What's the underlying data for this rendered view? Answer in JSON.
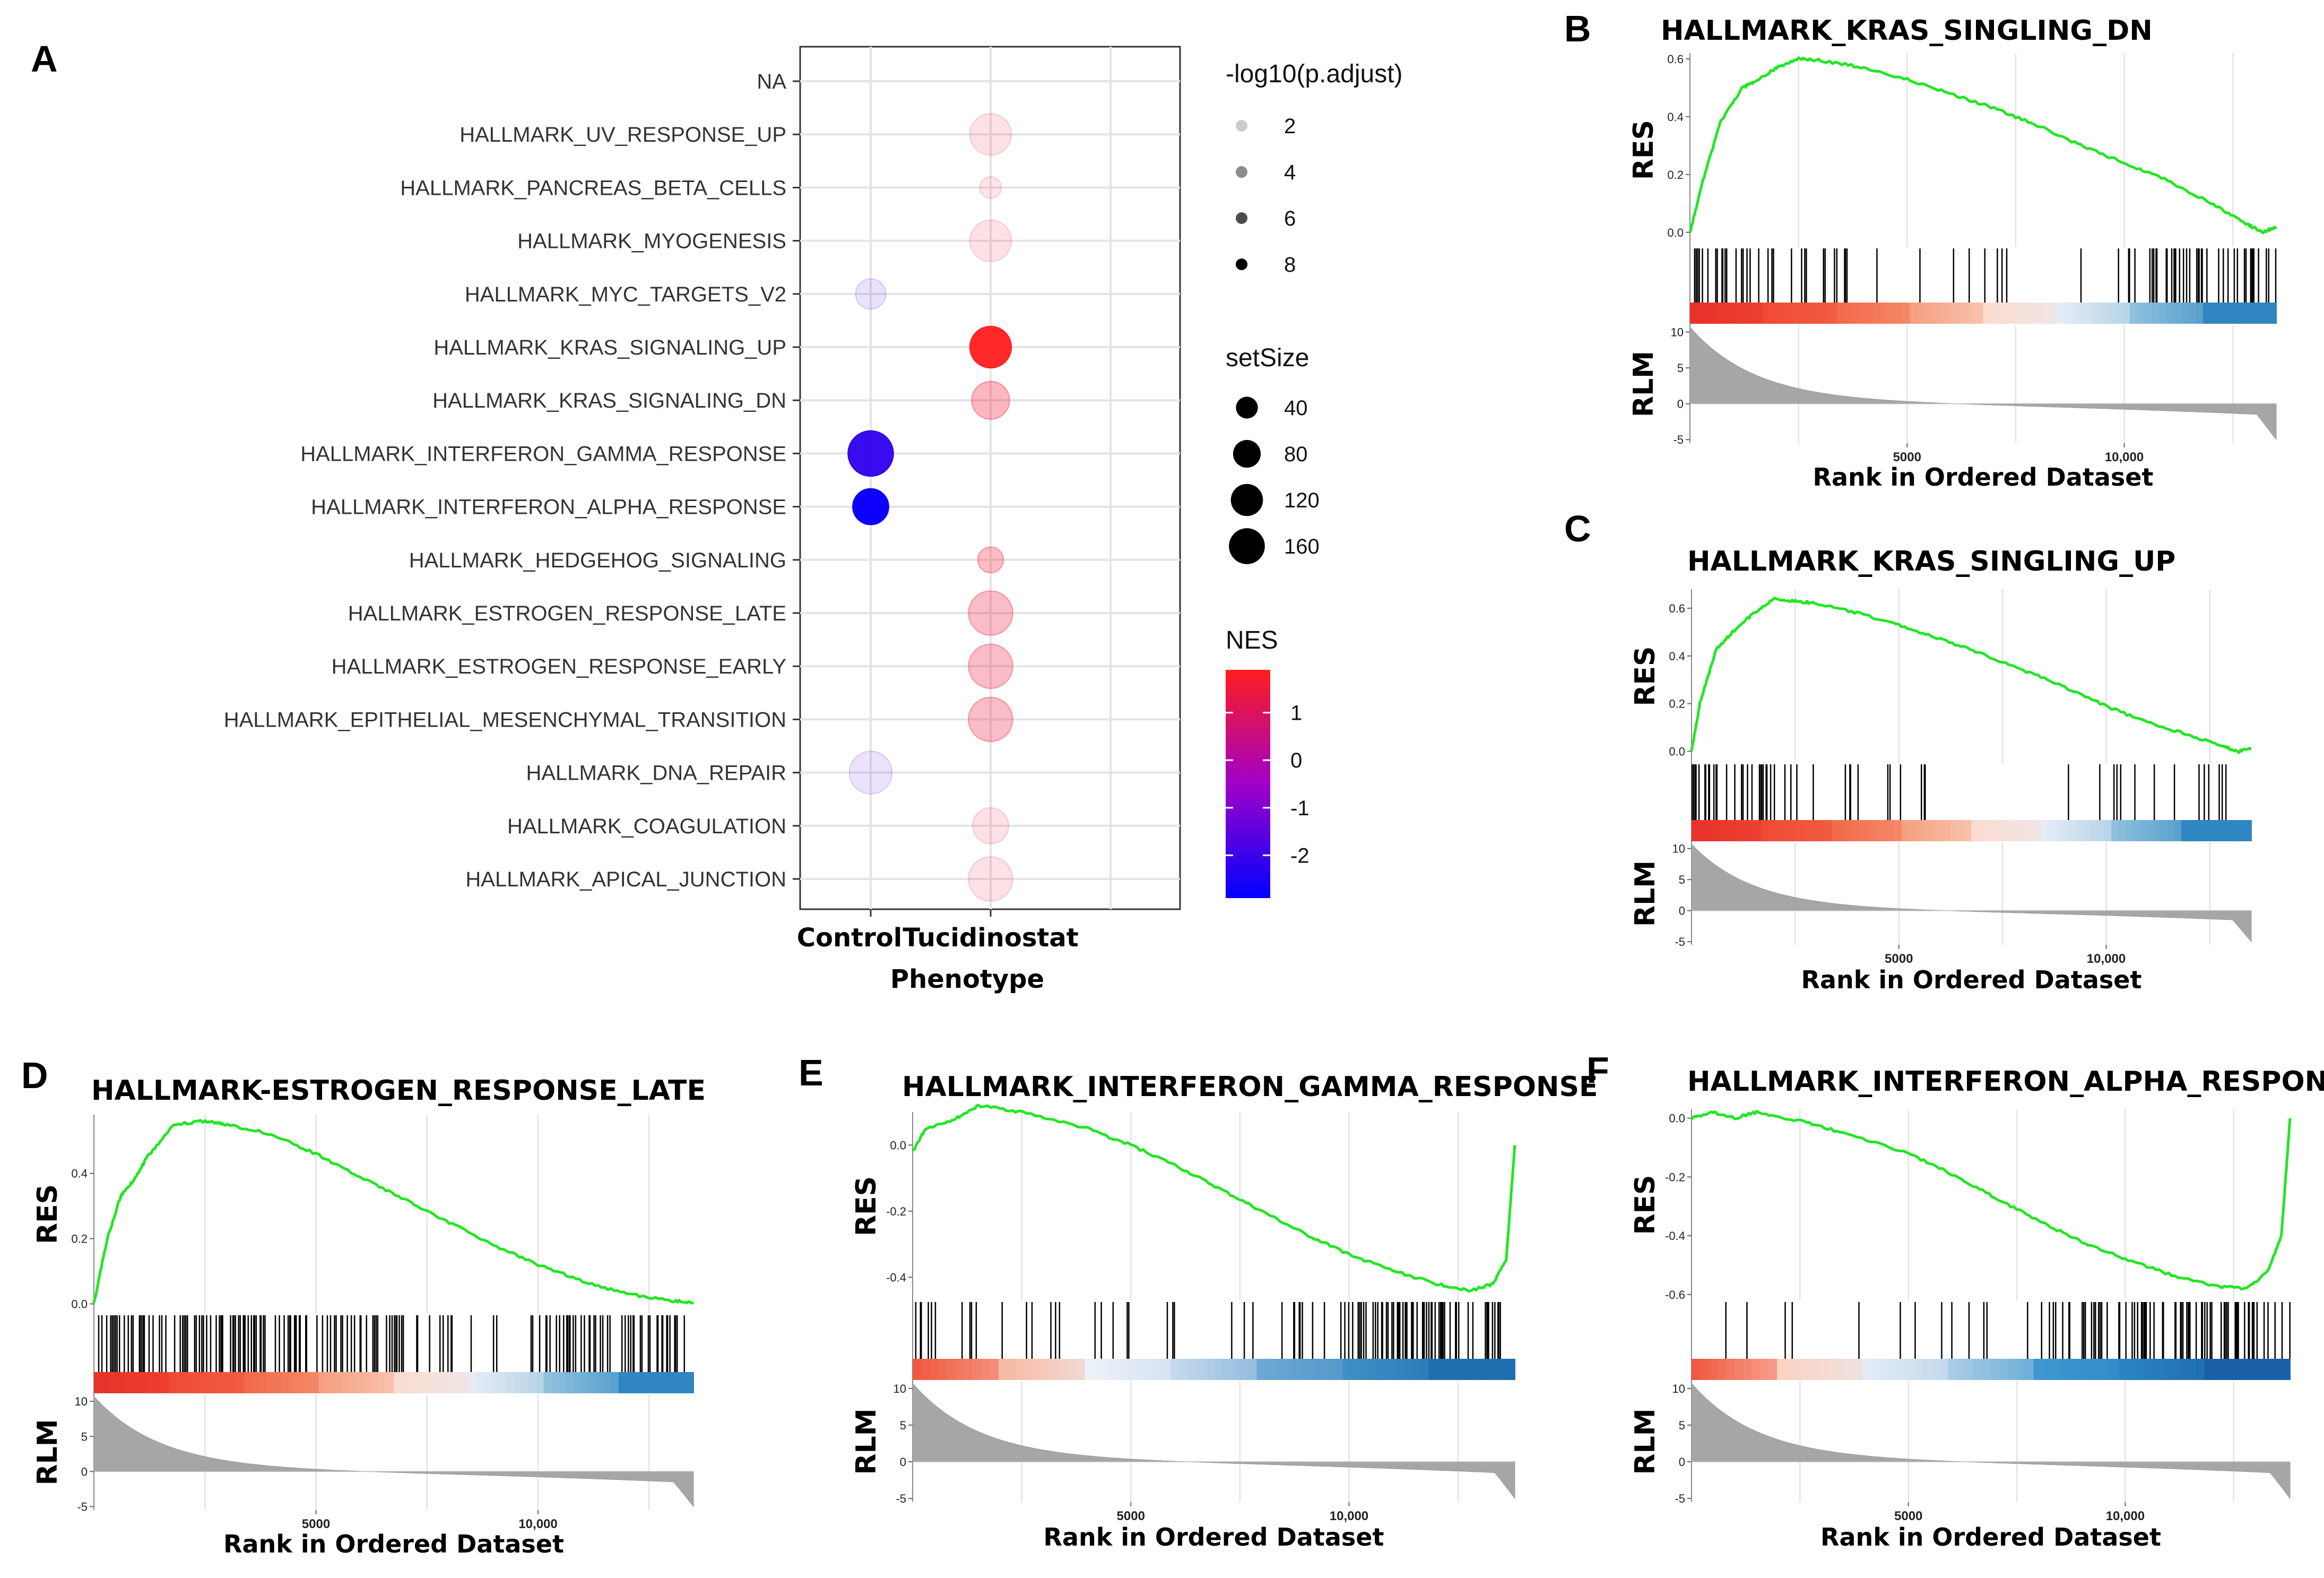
{
  "chart_data": [
    {
      "panel": "A",
      "type": "scatter",
      "xlabel": "Phenotype",
      "x_categories": [
        "Control",
        "Tucidinostat"
      ],
      "y_categories": [
        "NA",
        "HALLMARK_UV_RESPONSE_UP",
        "HALLMARK_PANCREAS_BETA_CELLS",
        "HALLMARK_MYOGENESIS",
        "HALLMARK_MYC_TARGETS_V2",
        "HALLMARK_KRAS_SIGNALING_UP",
        "HALLMARK_KRAS_SIGNALING_DN",
        "HALLMARK_INTERFERON_GAMMA_RESPONSE",
        "HALLMARK_INTERFERON_ALPHA_RESPONSE",
        "HALLMARK_HEDGEHOG_SIGNALING",
        "HALLMARK_ESTROGEN_RESPONSE_LATE",
        "HALLMARK_ESTROGEN_RESPONSE_EARLY",
        "HALLMARK_EPITHELIAL_MESENCHYMAL_TRANSITION",
        "HALLMARK_DNA_REPAIR",
        "HALLMARK_COAGULATION",
        "HALLMARK_APICAL_JUNCTION"
      ],
      "points": [
        {
          "term": "HALLMARK_UV_RESPONSE_UP",
          "phenotype": "Tucidinostat",
          "setSize": 140,
          "nlp": 1.6,
          "nes": 1.4
        },
        {
          "term": "HALLMARK_PANCREAS_BETA_CELLS",
          "phenotype": "Tucidinostat",
          "setSize": 20,
          "nlp": 1.5,
          "nes": 1.5
        },
        {
          "term": "HALLMARK_MYOGENESIS",
          "phenotype": "Tucidinostat",
          "setSize": 140,
          "nlp": 1.6,
          "nes": 1.4
        },
        {
          "term": "HALLMARK_MYC_TARGETS_V2",
          "phenotype": "Control",
          "setSize": 58,
          "nlp": 1.5,
          "nes": -1.8
        },
        {
          "term": "HALLMARK_KRAS_SIGNALING_UP",
          "phenotype": "Tucidinostat",
          "setSize": 140,
          "nlp": 8.5,
          "nes": 1.9
        },
        {
          "term": "HALLMARK_KRAS_SIGNALING_DN",
          "phenotype": "Tucidinostat",
          "setSize": 110,
          "nlp": 3.2,
          "nes": 1.6
        },
        {
          "term": "HALLMARK_INTERFERON_GAMMA_RESPONSE",
          "phenotype": "Control",
          "setSize": 175,
          "nlp": 8.5,
          "nes": -2.2
        },
        {
          "term": "HALLMARK_INTERFERON_ALPHA_RESPONSE",
          "phenotype": "Control",
          "setSize": 95,
          "nlp": 9.0,
          "nes": -2.7
        },
        {
          "term": "HALLMARK_HEDGEHOG_SIGNALING",
          "phenotype": "Tucidinostat",
          "setSize": 36,
          "nlp": 3.0,
          "nes": 1.6
        },
        {
          "term": "HALLMARK_ESTROGEN_RESPONSE_LATE",
          "phenotype": "Tucidinostat",
          "setSize": 165,
          "nlp": 3.0,
          "nes": 1.5
        },
        {
          "term": "HALLMARK_ESTROGEN_RESPONSE_EARLY",
          "phenotype": "Tucidinostat",
          "setSize": 165,
          "nlp": 3.0,
          "nes": 1.5
        },
        {
          "term": "HALLMARK_EPITHELIAL_MESENCHYMAL_TRANSITION",
          "phenotype": "Tucidinostat",
          "setSize": 165,
          "nlp": 3.0,
          "nes": 1.5
        },
        {
          "term": "HALLMARK_DNA_REPAIR",
          "phenotype": "Control",
          "setSize": 150,
          "nlp": 1.5,
          "nes": -1.6
        },
        {
          "term": "HALLMARK_COAGULATION",
          "phenotype": "Tucidinostat",
          "setSize": 95,
          "nlp": 1.6,
          "nes": 1.4
        },
        {
          "term": "HALLMARK_APICAL_JUNCTION",
          "phenotype": "Tucidinostat",
          "setSize": 165,
          "nlp": 1.6,
          "nes": 1.4
        }
      ],
      "legend_alpha": {
        "title": "-log10(p.adjust)",
        "values": [
          "2",
          "4",
          "6",
          "8"
        ]
      },
      "legend_size": {
        "title": "setSize",
        "values": [
          "40",
          "80",
          "120",
          "160"
        ]
      },
      "legend_color": {
        "title": "NES",
        "ticks": [
          "1",
          "0",
          "-1",
          "-2"
        ],
        "range": [
          -2.9,
          1.9
        ],
        "low_color": "#0000ff",
        "mid_color": "#a000c8",
        "high_color": "#ff1e1e"
      }
    },
    {
      "panel": "B",
      "type": "line",
      "title": "HALLMARK_KRAS_SINGLING_DN",
      "ylabel_top": "RES",
      "ylabel_bottom": "RLM",
      "xlabel": "Rank in Ordered Dataset",
      "x_ticks": [
        "5000",
        "10,000"
      ],
      "y_ticks_top": [
        "0.6",
        "0.4",
        "0.2",
        "0.0"
      ],
      "y_ticks_bottom": [
        "10",
        "5",
        "0",
        "-5"
      ],
      "xlim": [
        0,
        13500
      ],
      "ylim_top": [
        -0.05,
        0.62
      ],
      "curve": [
        [
          0,
          0
        ],
        [
          300,
          0.18
        ],
        [
          700,
          0.38
        ],
        [
          1200,
          0.5
        ],
        [
          1500,
          0.52
        ],
        [
          2000,
          0.57
        ],
        [
          2500,
          0.6
        ],
        [
          3000,
          0.595
        ],
        [
          4000,
          0.57
        ],
        [
          5000,
          0.53
        ],
        [
          6000,
          0.48
        ],
        [
          7000,
          0.43
        ],
        [
          8000,
          0.37
        ],
        [
          9000,
          0.3
        ],
        [
          10000,
          0.24
        ],
        [
          11000,
          0.18
        ],
        [
          12000,
          0.1
        ],
        [
          12800,
          0.03
        ],
        [
          13200,
          0.0
        ],
        [
          13500,
          0.02
        ]
      ],
      "heat_colors": [
        "#e8322b",
        "#f04a35",
        "#f26a4a",
        "#f5a07f",
        "#fbdcd0",
        "#e6ecf6",
        "#8fc1de",
        "#2f86c0"
      ],
      "hits_density": [
        [
          0,
          1600,
          "dense"
        ],
        [
          1600,
          4000,
          "medium"
        ],
        [
          4000,
          10500,
          "sparse"
        ],
        [
          10500,
          13500,
          "dense"
        ]
      ]
    },
    {
      "panel": "C",
      "type": "line",
      "title": "HALLMARK_KRAS_SINGLING_UP",
      "ylabel_top": "RES",
      "ylabel_bottom": "RLM",
      "xlabel": "Rank in Ordered Dataset",
      "x_ticks": [
        "5000",
        "10,000"
      ],
      "y_ticks_top": [
        "0.6",
        "0.4",
        "0.2",
        "0.0"
      ],
      "y_ticks_bottom": [
        "10",
        "5",
        "0",
        "-5"
      ],
      "xlim": [
        0,
        13500
      ],
      "ylim_top": [
        -0.05,
        0.68
      ],
      "curve": [
        [
          0,
          0
        ],
        [
          200,
          0.2
        ],
        [
          600,
          0.43
        ],
        [
          1000,
          0.5
        ],
        [
          1500,
          0.58
        ],
        [
          2000,
          0.64
        ],
        [
          2500,
          0.63
        ],
        [
          3000,
          0.62
        ],
        [
          4000,
          0.58
        ],
        [
          5000,
          0.53
        ],
        [
          6000,
          0.47
        ],
        [
          7000,
          0.41
        ],
        [
          8000,
          0.34
        ],
        [
          9000,
          0.27
        ],
        [
          10000,
          0.19
        ],
        [
          11000,
          0.12
        ],
        [
          12000,
          0.07
        ],
        [
          12800,
          0.02
        ],
        [
          13200,
          0.0
        ],
        [
          13500,
          0.01
        ]
      ],
      "heat_colors": [
        "#e8322b",
        "#f04a35",
        "#f26a4a",
        "#f5a07f",
        "#fbdcd0",
        "#e6ecf6",
        "#8fc1de",
        "#2f86c0"
      ],
      "hits_density": [
        [
          0,
          2000,
          "dense"
        ],
        [
          2000,
          4500,
          "medium"
        ],
        [
          4500,
          9000,
          "sparse"
        ],
        [
          9000,
          13500,
          "medium"
        ]
      ]
    },
    {
      "panel": "D",
      "type": "line",
      "title": "HALLMARK-ESTROGEN_RESPONSE_LATE",
      "ylabel_top": "RES",
      "ylabel_bottom": "RLM",
      "xlabel": "Rank in Ordered Dataset",
      "x_ticks": [
        "5000",
        "10,000"
      ],
      "y_ticks_top": [
        "0.4",
        "0.2",
        "0.0"
      ],
      "y_ticks_bottom": [
        "10",
        "5",
        "0",
        "-5"
      ],
      "xlim": [
        0,
        13500
      ],
      "ylim_top": [
        -0.03,
        0.58
      ],
      "curve": [
        [
          0,
          0
        ],
        [
          300,
          0.2
        ],
        [
          600,
          0.33
        ],
        [
          900,
          0.38
        ],
        [
          1200,
          0.45
        ],
        [
          1800,
          0.55
        ],
        [
          2500,
          0.56
        ],
        [
          3000,
          0.55
        ],
        [
          4000,
          0.52
        ],
        [
          5000,
          0.46
        ],
        [
          6000,
          0.39
        ],
        [
          7000,
          0.32
        ],
        [
          8000,
          0.25
        ],
        [
          9000,
          0.18
        ],
        [
          10000,
          0.12
        ],
        [
          11000,
          0.07
        ],
        [
          12000,
          0.03
        ],
        [
          13000,
          0.01
        ],
        [
          13500,
          0.005
        ]
      ],
      "heat_colors": [
        "#e8322b",
        "#f04a35",
        "#f26a4a",
        "#f5a07f",
        "#fbdcd0",
        "#e6ecf6",
        "#8fc1de",
        "#2f86c0"
      ],
      "hits_density": [
        [
          0,
          7000,
          "dense"
        ],
        [
          7000,
          10000,
          "medium"
        ],
        [
          10000,
          13500,
          "dense"
        ]
      ]
    },
    {
      "panel": "E",
      "type": "line",
      "title": "HALLMARK_INTERFERON_GAMMA_RESPONSE",
      "ylabel_top": "RES",
      "ylabel_bottom": "RLM",
      "xlabel": "Rank in Ordered Dataset",
      "x_ticks": [
        "5000",
        "10,000"
      ],
      "y_ticks_top": [
        "0.0",
        "-0.2",
        "-0.4"
      ],
      "y_ticks_bottom": [
        "10",
        "5",
        "0",
        "-5"
      ],
      "xlim": [
        0,
        13800
      ],
      "ylim_top": [
        -0.47,
        0.1
      ],
      "curve": [
        [
          0,
          -0.02
        ],
        [
          300,
          0.05
        ],
        [
          1000,
          0.08
        ],
        [
          1500,
          0.12
        ],
        [
          2500,
          0.1
        ],
        [
          4000,
          0.05
        ],
        [
          5000,
          0.0
        ],
        [
          6000,
          -0.06
        ],
        [
          7000,
          -0.13
        ],
        [
          8000,
          -0.2
        ],
        [
          9000,
          -0.27
        ],
        [
          10000,
          -0.33
        ],
        [
          11000,
          -0.38
        ],
        [
          12000,
          -0.42
        ],
        [
          12800,
          -0.44
        ],
        [
          13300,
          -0.42
        ],
        [
          13600,
          -0.35
        ],
        [
          13800,
          0.0
        ]
      ],
      "heat_colors": [
        "#f05a43",
        "#f8b9a3",
        "#eef1f8",
        "#c4d9ec",
        "#6ea8d3",
        "#3f8ec5",
        "#1f6fb0"
      ],
      "hits_density": [
        [
          0,
          4000,
          "medium"
        ],
        [
          4000,
          8500,
          "medium"
        ],
        [
          8500,
          13800,
          "dense"
        ]
      ]
    },
    {
      "panel": "F",
      "type": "line",
      "title": "HALLMARK_INTERFERON_ALPHA_RESPONSE",
      "ylabel_top": "RES",
      "ylabel_bottom": "RLM",
      "xlabel": "Rank in Ordered Dataset",
      "x_ticks": [
        "5000",
        "10,000"
      ],
      "y_ticks_top": [
        "0.0",
        "-0.2",
        "-0.4",
        "-0.6"
      ],
      "y_ticks_bottom": [
        "10",
        "5",
        "0",
        "-5"
      ],
      "xlim": [
        0,
        13800
      ],
      "ylim_top": [
        -0.62,
        0.03
      ],
      "curve": [
        [
          0,
          0
        ],
        [
          500,
          0.02
        ],
        [
          1000,
          0.0
        ],
        [
          1500,
          0.02
        ],
        [
          2500,
          -0.01
        ],
        [
          3500,
          -0.05
        ],
        [
          5000,
          -0.12
        ],
        [
          6000,
          -0.19
        ],
        [
          7000,
          -0.27
        ],
        [
          8000,
          -0.35
        ],
        [
          9000,
          -0.42
        ],
        [
          10000,
          -0.48
        ],
        [
          11000,
          -0.53
        ],
        [
          12000,
          -0.57
        ],
        [
          12800,
          -0.58
        ],
        [
          13300,
          -0.52
        ],
        [
          13600,
          -0.4
        ],
        [
          13800,
          0.0
        ]
      ],
      "heat_colors": [
        "#f05a43",
        "#fbd3c2",
        "#e4ebf6",
        "#a9cce5",
        "#3f97cf",
        "#2a83c2",
        "#1a60a8"
      ],
      "hits_density": [
        [
          0,
          3500,
          "sparse"
        ],
        [
          3500,
          8000,
          "sparse"
        ],
        [
          8000,
          13800,
          "dense"
        ]
      ]
    }
  ],
  "panel_letters": [
    "A",
    "B",
    "C",
    "D",
    "E",
    "F"
  ]
}
